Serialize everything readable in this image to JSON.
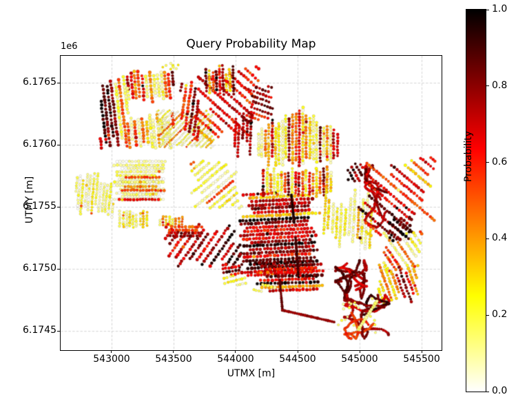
{
  "figure": {
    "title": "Query Probability Map",
    "xlabel": "UTMX [m]",
    "ylabel": "UTMY [m]",
    "offset_text": "1e6",
    "background": "#ffffff",
    "grid_color": "#cfcfcf",
    "spine_color": "#000000"
  },
  "colorbar": {
    "label": "Probability",
    "ticks": [
      {
        "v": 0.0,
        "label": "0.0"
      },
      {
        "v": 0.2,
        "label": "0.2"
      },
      {
        "v": 0.4,
        "label": "0.4"
      },
      {
        "v": 0.6,
        "label": "0.6"
      },
      {
        "v": 0.8,
        "label": "0.8"
      },
      {
        "v": 1.0,
        "label": "1.0"
      }
    ]
  },
  "chart_data": {
    "type": "scatter",
    "title": "Query Probability Map",
    "xlabel": "UTMX [m]",
    "ylabel": "UTMY [m]",
    "value_label": "Probability",
    "value_range": [
      0.0,
      1.0
    ],
    "colormap": "hot_r",
    "colormap_stops": [
      [
        0,
        "#ffffff"
      ],
      [
        0.25,
        "#ffff00"
      ],
      [
        0.635,
        "#ff0000"
      ],
      [
        1,
        "#000000"
      ]
    ],
    "grid": true,
    "xlim": [
      542589,
      545661
    ],
    "ylim": [
      6174345,
      6176717
    ],
    "xticks": [
      {
        "v": 543000,
        "label": "543000"
      },
      {
        "v": 543500,
        "label": "543500"
      },
      {
        "v": 544000,
        "label": "544000"
      },
      {
        "v": 544500,
        "label": "544500"
      },
      {
        "v": 545000,
        "label": "545000"
      },
      {
        "v": 545500,
        "label": "545500"
      }
    ],
    "yticks": [
      {
        "v": 6174500,
        "label": "6.1745"
      },
      {
        "v": 6175000,
        "label": "6.1750"
      },
      {
        "v": 6175500,
        "label": "6.1755"
      },
      {
        "v": 6176000,
        "label": "6.1760"
      },
      {
        "v": 6176500,
        "label": "6.1765"
      }
    ],
    "seed": 7,
    "clusters": [
      {
        "kind": "strips",
        "name": "nw-field-left",
        "x": [
          542906,
          543139
        ],
        "y": [
          6175973,
          6176584
        ],
        "angle": 97,
        "rows": 9,
        "dot": 2.2,
        "p": [
          0.45,
          0.95
        ],
        "p2": [
          0.15,
          0.25
        ],
        "f2": 0.15,
        "trim": 0.18
      },
      {
        "kind": "strips",
        "name": "nw-field-top",
        "x": [
          543128,
          543500
        ],
        "y": [
          6176345,
          6176623
        ],
        "angle": 95,
        "rows": 13,
        "dot": 2.2,
        "p": [
          0.3,
          0.9
        ],
        "p2": [
          0.1,
          0.2
        ],
        "f2": 0.25,
        "trim": 0.2
      },
      {
        "kind": "strips",
        "name": "nw-field-bottom",
        "x": [
          543128,
          543500
        ],
        "y": [
          6175973,
          6176267
        ],
        "angle": 95,
        "rows": 13,
        "dot": 2.2,
        "p": [
          0.25,
          0.75
        ],
        "p2": [
          0.08,
          0.18
        ],
        "f2": 0.3,
        "trim": 0.25
      },
      {
        "kind": "strips",
        "name": "nw-pale-texture-block",
        "x": [
          543367,
          543822
        ],
        "y": [
          6175973,
          6176289
        ],
        "angle": 45,
        "rows": 18,
        "dot": 1.4,
        "p": [
          0.02,
          0.2
        ],
        "p2": [
          0.3,
          0.5
        ],
        "f2": 0.1,
        "trim": 0.12
      },
      {
        "kind": "strips",
        "name": "north-diagonal-dark",
        "x": [
          543672,
          544200
        ],
        "y": [
          6176011,
          6176639
        ],
        "angle": -42,
        "rows": 13,
        "dot": 2.2,
        "p": [
          0.55,
          0.95
        ],
        "p2": [
          0.3,
          0.45
        ],
        "f2": 0.12,
        "trim": 0.32
      },
      {
        "kind": "strips",
        "name": "north-steep-red",
        "x": [
          543556,
          543711
        ],
        "y": [
          6176028,
          6176528
        ],
        "angle": 82,
        "rows": 6,
        "dot": 2.1,
        "p": [
          0.5,
          0.85
        ],
        "trim": 0.25
      },
      {
        "kind": "strips",
        "name": "north-vertical-mix",
        "x": [
          543756,
          543989
        ],
        "y": [
          6176389,
          6176656
        ],
        "angle": 92,
        "rows": 9,
        "dot": 2.0,
        "p": [
          0.15,
          0.85
        ],
        "trim": 0.3
      },
      {
        "kind": "strips",
        "name": "north-center-red",
        "x": [
          544072,
          544322
        ],
        "y": [
          6176178,
          6176473
        ],
        "angle": -20,
        "rows": 9,
        "dot": 2.0,
        "p": [
          0.55,
          0.9
        ],
        "trim": 0.3
      },
      {
        "kind": "strips",
        "name": "center-vertical-sparse",
        "x": [
          543989,
          544128
        ],
        "y": [
          6175889,
          6176306
        ],
        "angle": 88,
        "rows": 5,
        "dot": 2.0,
        "p": [
          0.5,
          0.85
        ],
        "trim": 0.4
      },
      {
        "kind": "strips",
        "name": "north-yellow-roof-field",
        "x": [
          544172,
          544833
        ],
        "y": [
          6175834,
          6176345
        ],
        "angle": 90,
        "rows": 24,
        "dot": 2.0,
        "p": [
          0.1,
          0.5
        ],
        "p2": [
          0.55,
          0.85
        ],
        "f2": 0.22,
        "trim": 0.18,
        "peak": 0.5,
        "peakcut": 0.5
      },
      {
        "kind": "strips",
        "name": "west-pale-horizontal",
        "x": [
          543000,
          543445
        ],
        "y": [
          6175545,
          6175878
        ],
        "angle": 0,
        "rows": 12,
        "dot": 2.0,
        "p": [
          0.02,
          0.2
        ],
        "p2": [
          0.35,
          0.6
        ],
        "f2": 0.15,
        "trim": 0.22
      },
      {
        "kind": "strips",
        "name": "west-pale-vertical",
        "x": [
          542711,
          543017
        ],
        "y": [
          6175417,
          6175789
        ],
        "angle": 85,
        "rows": 12,
        "dot": 1.8,
        "p": [
          0.03,
          0.25
        ],
        "trim": 0.3
      },
      {
        "kind": "strips",
        "name": "west-orange-rows",
        "x": [
          543033,
          543445
        ],
        "y": [
          6175545,
          6175750
        ],
        "angle": 0,
        "rows": 6,
        "dot": 2.0,
        "p": [
          0.3,
          0.65
        ],
        "p2": [
          0.06,
          0.15
        ],
        "f2": 0.35,
        "trim": 0.25
      },
      {
        "kind": "strips",
        "name": "west-small-vertical",
        "x": [
          543056,
          543295
        ],
        "y": [
          6175334,
          6175473
        ],
        "angle": 90,
        "rows": 9,
        "dot": 1.8,
        "p": [
          0.08,
          0.3
        ],
        "trim": 0.2
      },
      {
        "kind": "strips",
        "name": "center-dots-row",
        "x": [
          543378,
          543583
        ],
        "y": [
          6175350,
          6175428
        ],
        "angle": 90,
        "rows": 8,
        "dot": 1.8,
        "p": [
          0.1,
          0.5
        ],
        "trim": 0.2
      },
      {
        "kind": "strips",
        "name": "center-diagonal-mix",
        "x": [
          543639,
          544056
        ],
        "y": [
          6175489,
          6175878
        ],
        "angle": 40,
        "rows": 12,
        "dot": 2.0,
        "p": [
          0.08,
          0.35
        ],
        "p2": [
          0.5,
          0.8
        ],
        "f2": 0.3,
        "trim": 0.3
      },
      {
        "kind": "strips",
        "name": "center-dark-diagonal",
        "x": [
          543433,
          544056
        ],
        "y": [
          6175000,
          6175373
        ],
        "angle": 55,
        "rows": 14,
        "dot": 2.2,
        "p": [
          0.55,
          0.95
        ],
        "p2": [
          0.3,
          0.45
        ],
        "f2": 0.1,
        "trim": 0.3
      },
      {
        "kind": "strips",
        "name": "center-red-rows",
        "x": [
          543450,
          543739
        ],
        "y": [
          6175250,
          6175350
        ],
        "angle": 0,
        "rows": 4,
        "dot": 2.2,
        "p": [
          0.5,
          0.8
        ],
        "trim": 0.15
      },
      {
        "kind": "strips",
        "name": "central-dark-field",
        "x": [
          544033,
          544711
        ],
        "y": [
          6174934,
          6175611
        ],
        "angle": 3,
        "rows": 24,
        "dot": 2.3,
        "p": [
          0.55,
          1.0
        ],
        "p2": [
          0.25,
          0.45
        ],
        "f2": 0.12,
        "trim": 0.2
      },
      {
        "kind": "strips",
        "name": "central-yellow-vertical",
        "x": [
          544211,
          544783
        ],
        "y": [
          6175572,
          6175834
        ],
        "angle": 90,
        "rows": 20,
        "dot": 2.0,
        "p": [
          0.12,
          0.55
        ],
        "p2": [
          0.6,
          0.85
        ],
        "f2": 0.15,
        "trim": 0.25
      },
      {
        "kind": "strips",
        "name": "east-pale-vertical",
        "x": [
          544711,
          545100
        ],
        "y": [
          6175150,
          6175678
        ],
        "angle": 87,
        "rows": 12,
        "dot": 1.9,
        "p": [
          0.04,
          0.3
        ],
        "p2": [
          0.4,
          0.6
        ],
        "f2": 0.15,
        "trim": 0.38
      },
      {
        "kind": "curl",
        "name": "east-dark-curves",
        "x": [
          545044,
          545228
        ],
        "y": [
          6175334,
          6175834
        ],
        "count": 4,
        "p": [
          0.6,
          0.95
        ],
        "width": 2.2,
        "vertical": true
      },
      {
        "kind": "strips",
        "name": "east-diagonal-red",
        "x": [
          544989,
          545628
        ],
        "y": [
          6175222,
          6175900
        ],
        "angle": -40,
        "rows": 15,
        "dot": 2.1,
        "p": [
          0.5,
          0.9
        ],
        "p2": [
          0.25,
          0.4
        ],
        "f2": 0.15,
        "trim": 0.33
      },
      {
        "kind": "strips",
        "name": "east-dark-patch",
        "x": [
          545239,
          545433
        ],
        "y": [
          6175222,
          6175417
        ],
        "angle": -40,
        "rows": 6,
        "dot": 2.3,
        "p": [
          0.75,
          1.0
        ],
        "trim": 0.2
      },
      {
        "kind": "strips",
        "name": "east-small-dark",
        "x": [
          544906,
          545028
        ],
        "y": [
          6175695,
          6175845
        ],
        "angle": -60,
        "rows": 5,
        "dot": 2.0,
        "p": [
          0.7,
          0.95
        ],
        "trim": 0.2
      },
      {
        "kind": "strips",
        "name": "southeast-diagonal",
        "x": [
          545172,
          545517
        ],
        "y": [
          6174945,
          6175306
        ],
        "angle": -55,
        "rows": 10,
        "dot": 2.0,
        "p": [
          0.35,
          0.8
        ],
        "p2": [
          0.1,
          0.25
        ],
        "f2": 0.2,
        "trim": 0.3
      },
      {
        "kind": "strips",
        "name": "south-dark-rows",
        "x": [
          544144,
          544728
        ],
        "y": [
          6174822,
          6175067
        ],
        "angle": 2,
        "rows": 9,
        "dot": 2.3,
        "p": [
          0.6,
          1.0
        ],
        "p2": [
          0.3,
          0.45
        ],
        "f2": 0.08,
        "trim": 0.2
      },
      {
        "kind": "strips",
        "name": "south-yellow-strip",
        "x": [
          544144,
          544322
        ],
        "y": [
          6174811,
          6174878
        ],
        "angle": -15,
        "rows": 2,
        "dot": 2.0,
        "p": [
          0.12,
          0.2
        ],
        "trim": 0.1
      },
      {
        "kind": "strips",
        "name": "south-small-dark",
        "x": [
          543889,
          544044
        ],
        "y": [
          6174950,
          6175039
        ],
        "angle": 10,
        "rows": 4,
        "dot": 2.1,
        "p": [
          0.6,
          0.9
        ],
        "trim": 0.2
      },
      {
        "kind": "strips",
        "name": "south-yellow-diagonal",
        "x": [
          543906,
          544089
        ],
        "y": [
          6174867,
          6174945
        ],
        "angle": 15,
        "rows": 3,
        "dot": 2.0,
        "p": [
          0.12,
          0.22
        ],
        "trim": 0.1
      },
      {
        "kind": "strips",
        "name": "southeast-hatch",
        "x": [
          545145,
          545478
        ],
        "y": [
          6174706,
          6175039
        ],
        "angle": -70,
        "rows": 12,
        "dot": 2.0,
        "p": [
          0.25,
          0.85
        ],
        "trim": 0.3
      },
      {
        "kind": "curl",
        "name": "southeast-curls-upper",
        "x": [
          544806,
          545056
        ],
        "y": [
          6174761,
          6175067
        ],
        "count": 6,
        "p": [
          0.55,
          0.95
        ],
        "width": 2.2
      },
      {
        "kind": "curl",
        "name": "southeast-curls-lower",
        "x": [
          544878,
          545239
        ],
        "y": [
          6174439,
          6174789
        ],
        "count": 7,
        "p": [
          0.5,
          0.95
        ],
        "width": 2.2
      },
      {
        "kind": "line",
        "name": "field-seam-upper",
        "points": [
          [
            544450,
            6175595
          ],
          [
            544472,
            6175373
          ]
        ],
        "p": 0.95,
        "width": 2.4
      },
      {
        "kind": "line",
        "name": "field-seam-lower",
        "points": [
          [
            544483,
            6175250
          ],
          [
            544506,
            6174956
          ]
        ],
        "p": 0.9,
        "width": 2.4
      },
      {
        "kind": "line",
        "name": "south-track-drop",
        "points": [
          [
            544356,
            6174911
          ],
          [
            544378,
            6174667
          ]
        ],
        "p": 0.85,
        "width": 2.4
      },
      {
        "kind": "line",
        "name": "south-track-diagonal",
        "points": [
          [
            544378,
            6174667
          ],
          [
            544794,
            6174572
          ]
        ],
        "p": 0.78,
        "width": 2.6
      },
      {
        "kind": "line",
        "name": "southeast-yellow-track",
        "points": [
          [
            544989,
            6174511
          ],
          [
            545139,
            6174739
          ]
        ],
        "p": 0.13,
        "width": 3.0
      },
      {
        "kind": "dots",
        "name": "southeast-yellow-dots",
        "x": [
          544811,
          545128
        ],
        "y": [
          6174428,
          6174761
        ],
        "count": 20,
        "dot": 1.8,
        "p": [
          0.08,
          0.2
        ]
      },
      {
        "kind": "dots",
        "name": "north-yellow-caps",
        "x": [
          543367,
          543556
        ],
        "y": [
          6176606,
          6176656
        ],
        "count": 8,
        "dot": 1.8,
        "p": [
          0.1,
          0.3
        ]
      }
    ]
  }
}
